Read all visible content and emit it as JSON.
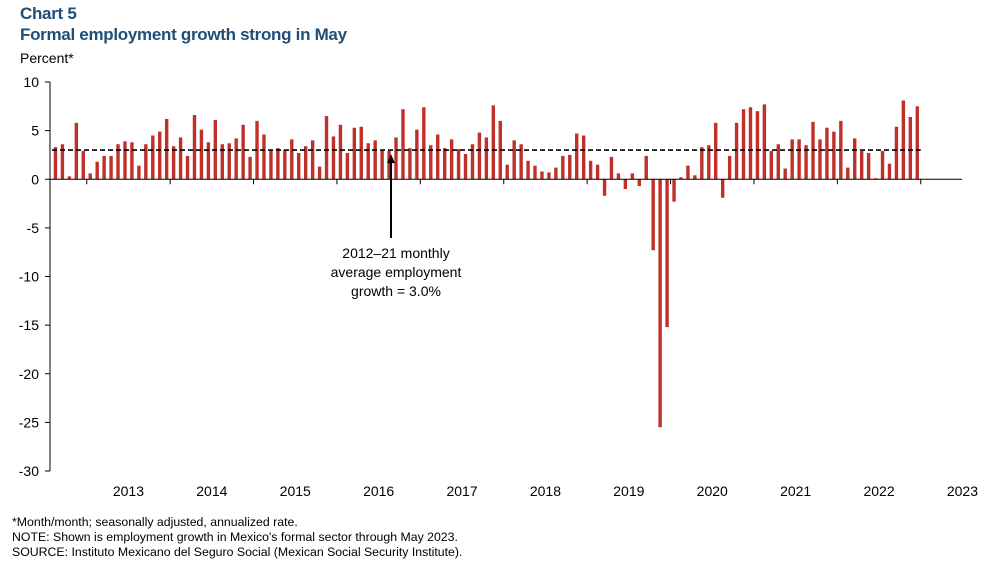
{
  "header": {
    "chart_label": "Chart 5",
    "title": "Formal employment growth strong in May"
  },
  "notes": {
    "asterisk": "*Month/month; seasonally adjusted, annualized rate.",
    "note": "NOTE: Shown is employment growth in Mexico's formal sector through May 2023.",
    "source": "SOURCE: Instituto Mexicano del Seguro Social (Mexican Social Security Institute)."
  },
  "colors": {
    "bar": "#C0302B",
    "reference_line": "#000000",
    "title": "#1F4E79"
  },
  "chart_data": {
    "type": "bar",
    "title": "Formal employment growth strong in May",
    "ylabel": "Percent*",
    "xlabel": "",
    "ylim": [
      -30,
      10
    ],
    "yticks": [
      10,
      5,
      0,
      -5,
      -10,
      -15,
      -20,
      -25,
      -30
    ],
    "ytick_labels": [
      "10",
      "5",
      "0",
      "-5",
      "-10",
      "-15",
      "-20",
      "-25",
      "-30"
    ],
    "year_labels": [
      "2013",
      "2014",
      "2015",
      "2016",
      "2017",
      "2018",
      "2019",
      "2020",
      "2021",
      "2022",
      "2023"
    ],
    "start": "2012-08",
    "end": "2023-05",
    "series": [
      {
        "name": "Formal employment growth (month/month, annualized)",
        "values": [
          3.3,
          3.6,
          0.3,
          5.8,
          2.9,
          0.6,
          1.8,
          2.4,
          2.4,
          3.6,
          3.9,
          3.8,
          1.4,
          3.6,
          4.5,
          4.9,
          6.2,
          3.4,
          4.3,
          2.4,
          6.6,
          5.1,
          3.8,
          6.1,
          3.6,
          3.7,
          4.2,
          5.6,
          2.3,
          6.0,
          4.6,
          3.0,
          3.2,
          3.0,
          4.1,
          2.7,
          3.4,
          4.0,
          1.3,
          6.5,
          4.4,
          5.6,
          2.7,
          5.3,
          5.4,
          3.7,
          4.0,
          3.0,
          2.9,
          4.3,
          7.2,
          3.2,
          5.1,
          7.4,
          3.5,
          4.6,
          3.2,
          4.1,
          3.1,
          2.6,
          3.6,
          4.8,
          4.3,
          7.6,
          6.0,
          1.5,
          4.0,
          3.6,
          1.9,
          1.4,
          0.8,
          0.7,
          1.2,
          2.4,
          2.5,
          4.7,
          4.5,
          1.9,
          1.5,
          -1.7,
          2.3,
          0.6,
          -1.0,
          0.6,
          -0.7,
          2.4,
          -7.3,
          -25.5,
          -15.2,
          -2.3,
          0.2,
          1.4,
          0.4,
          3.3,
          3.5,
          5.8,
          -1.9,
          2.4,
          5.8,
          7.2,
          7.4,
          7.0,
          7.7,
          2.9,
          3.6,
          1.1,
          4.1,
          4.1,
          3.5,
          5.9,
          4.1,
          5.3,
          4.9,
          6.0,
          1.2,
          4.2,
          2.9,
          2.7,
          0.1,
          2.9,
          1.6,
          5.4,
          8.1,
          6.4,
          7.5
        ]
      }
    ],
    "reference_line": {
      "value": 3.0,
      "label": "2012–21 monthly average employment growth = 3.0%"
    },
    "annotation_lines": [
      "2012–21 monthly",
      "average employment",
      "growth = 3.0%"
    ]
  }
}
